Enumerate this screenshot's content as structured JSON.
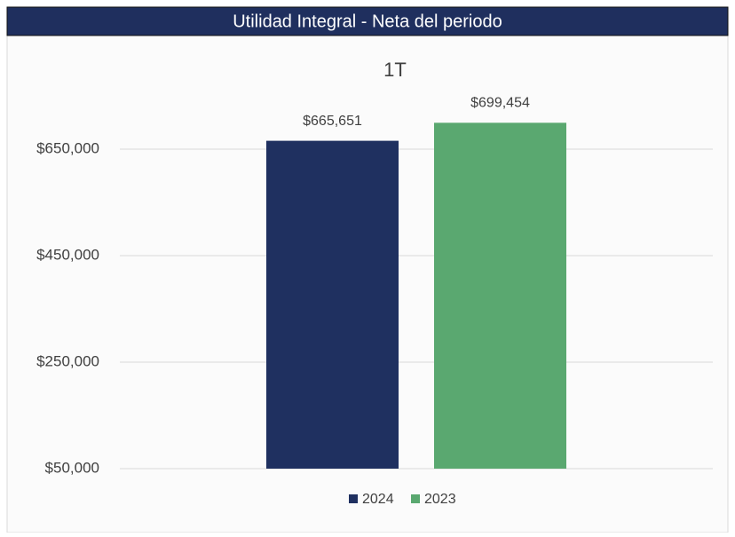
{
  "header": {
    "title": "Utilidad Integral - Neta del periodo"
  },
  "chart_data": {
    "type": "bar",
    "title": "1T",
    "categories": [
      null
    ],
    "series": [
      {
        "name": "2024",
        "color": "#1f3060",
        "values": [
          665651
        ],
        "value_labels": [
          "$665,651"
        ]
      },
      {
        "name": "2023",
        "color": "#5aa870",
        "values": [
          699454
        ],
        "value_labels": [
          "$699,454"
        ]
      }
    ],
    "ylim": [
      50000,
      750000
    ],
    "yticks": [
      {
        "value": 50000,
        "label": "$50,000"
      },
      {
        "value": 250000,
        "label": "$250,000"
      },
      {
        "value": 450000,
        "label": "$450,000"
      },
      {
        "value": 650000,
        "label": "$650,000"
      }
    ],
    "grid": true,
    "legend": "bottom"
  }
}
